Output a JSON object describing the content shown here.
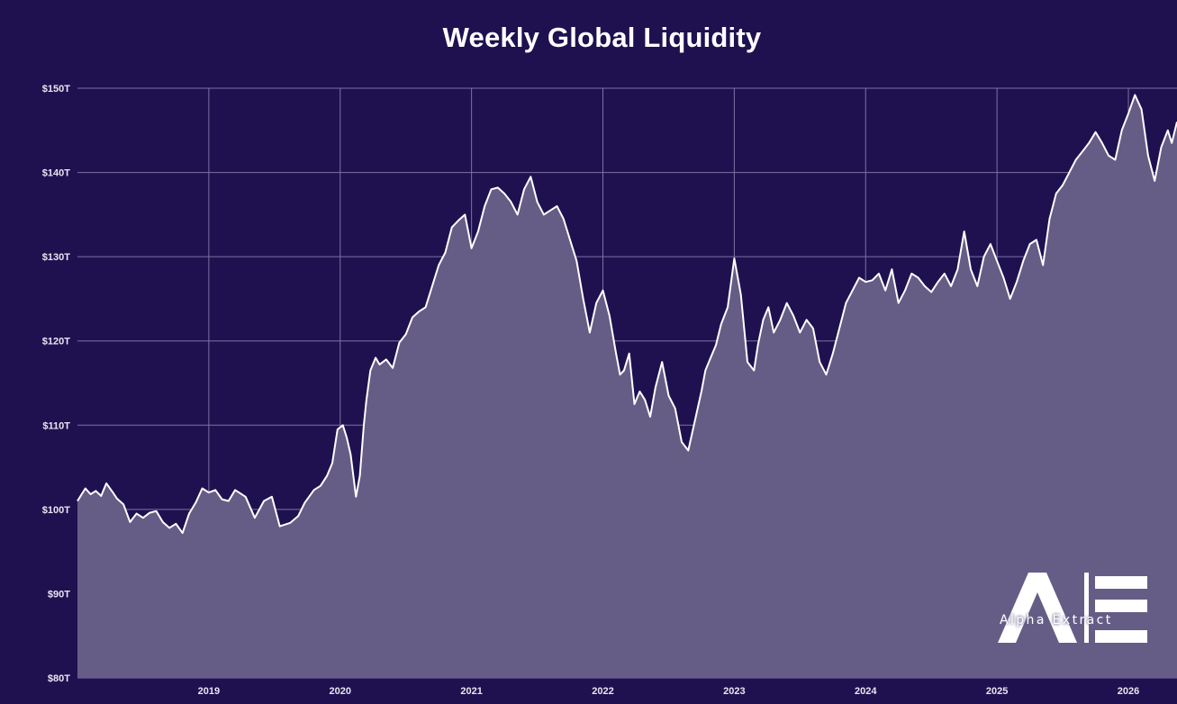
{
  "chart_data": {
    "type": "area",
    "title": "Weekly Global Liquidity",
    "xlabel": "",
    "ylabel": "",
    "ylim": [
      80,
      150
    ],
    "y_ticks": [
      "$80T",
      "$90T",
      "$100T",
      "$110T",
      "$120T",
      "$130T",
      "$140T",
      "$150T"
    ],
    "y_tick_values": [
      80,
      90,
      100,
      110,
      120,
      130,
      140,
      150
    ],
    "x_ticks": [
      "2019",
      "2020",
      "2021",
      "2022",
      "2023",
      "2024",
      "2025",
      "2026"
    ],
    "x_tick_values": [
      2019,
      2020,
      2021,
      2022,
      2023,
      2024,
      2025,
      2026
    ],
    "xlim": [
      2018.0,
      2026.37
    ],
    "grid": true,
    "series": [
      {
        "x": [
          2018.0,
          2018.06,
          2018.1,
          2018.14,
          2018.18,
          2018.22,
          2018.27,
          2018.3,
          2018.35,
          2018.4,
          2018.45,
          2018.5,
          2018.55,
          2018.6,
          2018.65,
          2018.7,
          2018.75,
          2018.8,
          2018.85,
          2018.9,
          2018.95,
          2019.0,
          2019.05,
          2019.1,
          2019.15,
          2019.2,
          2019.28,
          2019.35,
          2019.42,
          2019.48,
          2019.54,
          2019.62,
          2019.68,
          2019.73,
          2019.8,
          2019.85,
          2019.9,
          2019.94,
          2019.98,
          2020.02,
          2020.05,
          2020.08,
          2020.12,
          2020.15,
          2020.18,
          2020.2,
          2020.23,
          2020.27,
          2020.3,
          2020.35,
          2020.4,
          2020.45,
          2020.5,
          2020.55,
          2020.6,
          2020.65,
          2020.7,
          2020.75,
          2020.8,
          2020.85,
          2020.9,
          2020.95,
          2021.0,
          2021.05,
          2021.1,
          2021.15,
          2021.2,
          2021.25,
          2021.3,
          2021.35,
          2021.4,
          2021.45,
          2021.5,
          2021.55,
          2021.6,
          2021.65,
          2021.7,
          2021.75,
          2021.8,
          2021.85,
          2021.9,
          2021.95,
          2022.0,
          2022.05,
          2022.1,
          2022.13,
          2022.16,
          2022.2,
          2022.24,
          2022.28,
          2022.32,
          2022.36,
          2022.4,
          2022.45,
          2022.5,
          2022.55,
          2022.6,
          2022.65,
          2022.7,
          2022.75,
          2022.78,
          2022.82,
          2022.86,
          2022.9,
          2022.95,
          2023.0,
          2023.05,
          2023.1,
          2023.15,
          2023.18,
          2023.22,
          2023.26,
          2023.3,
          2023.35,
          2023.4,
          2023.45,
          2023.5,
          2023.55,
          2023.6,
          2023.65,
          2023.7,
          2023.75,
          2023.8,
          2023.85,
          2023.9,
          2023.95,
          2024.0,
          2024.05,
          2024.1,
          2024.15,
          2024.2,
          2024.25,
          2024.3,
          2024.35,
          2024.4,
          2024.45,
          2024.5,
          2024.55,
          2024.6,
          2024.65,
          2024.7,
          2024.75,
          2024.8,
          2024.85,
          2024.9,
          2024.95,
          2025.0,
          2025.05,
          2025.1,
          2025.15,
          2025.2,
          2025.25,
          2025.3,
          2025.35,
          2025.4,
          2025.45,
          2025.5,
          2025.55,
          2025.6,
          2025.65,
          2025.7,
          2025.75,
          2025.8,
          2025.85,
          2025.9,
          2025.95,
          2026.0,
          2026.05,
          2026.1,
          2026.15,
          2026.2,
          2026.25,
          2026.3,
          2026.33,
          2026.37
        ],
        "values": [
          101.0,
          102.5,
          101.8,
          102.2,
          101.6,
          103.1,
          102.0,
          101.3,
          100.6,
          98.5,
          99.5,
          99.0,
          99.6,
          99.8,
          98.5,
          97.8,
          98.3,
          97.2,
          99.5,
          100.8,
          102.5,
          102.0,
          102.3,
          101.2,
          101.0,
          102.3,
          101.5,
          99.0,
          101.0,
          101.5,
          98.0,
          98.4,
          99.2,
          100.8,
          102.3,
          102.8,
          104.0,
          105.5,
          109.5,
          110.0,
          108.5,
          106.5,
          101.5,
          104.0,
          110.0,
          113.0,
          116.5,
          118.0,
          117.2,
          117.8,
          116.8,
          119.8,
          120.8,
          122.8,
          123.5,
          124.0,
          126.5,
          129.0,
          130.5,
          133.5,
          134.3,
          135.0,
          131.0,
          133.0,
          136.0,
          138.0,
          138.2,
          137.5,
          136.5,
          135.0,
          138.0,
          139.5,
          136.5,
          135.0,
          135.5,
          136.0,
          134.5,
          132.0,
          129.5,
          125.0,
          121.0,
          124.5,
          126.0,
          123.0,
          118.5,
          116.0,
          116.5,
          118.5,
          112.5,
          114.0,
          113.0,
          111.0,
          114.5,
          117.5,
          113.5,
          112.0,
          108.0,
          107.0,
          110.5,
          114.0,
          116.5,
          118.0,
          119.5,
          122.0,
          124.0,
          129.8,
          125.5,
          117.5,
          116.5,
          119.5,
          122.5,
          124.0,
          121.0,
          122.5,
          124.5,
          123.0,
          121.0,
          122.5,
          121.5,
          117.5,
          116.0,
          118.5,
          121.5,
          124.5,
          126.0,
          127.5,
          127.0,
          127.2,
          128.0,
          126.0,
          128.5,
          124.5,
          126.0,
          128.0,
          127.5,
          126.5,
          125.8,
          127.0,
          128.0,
          126.5,
          128.5,
          133.0,
          128.5,
          126.5,
          130.0,
          131.5,
          129.5,
          127.5,
          125.0,
          127.0,
          129.5,
          131.5,
          132.0,
          129.0,
          134.5,
          137.5,
          138.5,
          140.0,
          141.5,
          142.5,
          143.5,
          144.8,
          143.5,
          142.0,
          141.5,
          145.0,
          147.0,
          149.2,
          147.5,
          142.0,
          139.0,
          143.0,
          145.0,
          143.5,
          146.0
        ]
      }
    ]
  },
  "colors": {
    "background": "#1f1150",
    "area_fill": "#655d86",
    "line": "#ffffff",
    "grid": "#7a73a3"
  },
  "logo": {
    "text": "Alpha Extract"
  }
}
